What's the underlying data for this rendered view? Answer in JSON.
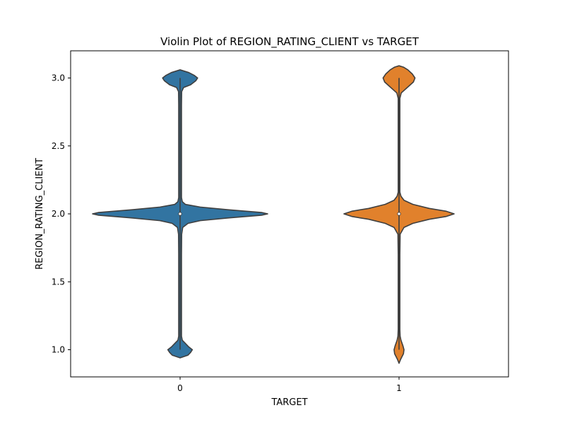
{
  "chart_data": {
    "type": "violin",
    "title": "Violin Plot of REGION_RATING_CLIENT vs TARGET",
    "xlabel": "TARGET",
    "ylabel": "REGION_RATING_CLIENT",
    "categories": [
      "0",
      "1"
    ],
    "ylim": [
      0.8,
      3.2
    ],
    "yticks": [
      1.0,
      1.5,
      2.0,
      2.5,
      3.0
    ],
    "ytick_labels": [
      "1.0",
      "1.5",
      "2.0",
      "2.5",
      "3.0"
    ],
    "grid": false,
    "colors": [
      "#3274a1",
      "#e1812c"
    ],
    "series": [
      {
        "category": "0",
        "median": 2.0,
        "q1": 2.0,
        "q3": 2.0,
        "whisker_low": 1.0,
        "whisker_high": 3.0,
        "density": [
          [
            0.94,
            0.0
          ],
          [
            0.96,
            0.09
          ],
          [
            0.98,
            0.12
          ],
          [
            1.0,
            0.14
          ],
          [
            1.02,
            0.1
          ],
          [
            1.04,
            0.07
          ],
          [
            1.07,
            0.025
          ],
          [
            1.1,
            0.016
          ],
          [
            1.2,
            0.016
          ],
          [
            1.7,
            0.016
          ],
          [
            1.85,
            0.018
          ],
          [
            1.9,
            0.03
          ],
          [
            1.93,
            0.09
          ],
          [
            1.95,
            0.23
          ],
          [
            1.97,
            0.55
          ],
          [
            1.99,
            0.93
          ],
          [
            2.0,
            1.0
          ],
          [
            2.01,
            0.93
          ],
          [
            2.03,
            0.55
          ],
          [
            2.05,
            0.23
          ],
          [
            2.07,
            0.06
          ],
          [
            2.09,
            0.025
          ],
          [
            2.12,
            0.016
          ],
          [
            2.8,
            0.016
          ],
          [
            2.9,
            0.018
          ],
          [
            2.93,
            0.04
          ],
          [
            2.95,
            0.12
          ],
          [
            2.98,
            0.18
          ],
          [
            3.0,
            0.2
          ],
          [
            3.02,
            0.16
          ],
          [
            3.04,
            0.1
          ],
          [
            3.06,
            0.0
          ]
        ]
      },
      {
        "category": "1",
        "median": 2.0,
        "q1": 2.0,
        "q3": 2.0,
        "whisker_low": 1.0,
        "whisker_high": 3.0,
        "density": [
          [
            0.9,
            0.0
          ],
          [
            0.93,
            0.03
          ],
          [
            0.97,
            0.08
          ],
          [
            1.0,
            0.09
          ],
          [
            1.03,
            0.07
          ],
          [
            1.07,
            0.035
          ],
          [
            1.1,
            0.02
          ],
          [
            1.15,
            0.015
          ],
          [
            1.7,
            0.015
          ],
          [
            1.85,
            0.02
          ],
          [
            1.9,
            0.09
          ],
          [
            1.93,
            0.25
          ],
          [
            1.96,
            0.55
          ],
          [
            1.98,
            0.85
          ],
          [
            2.0,
            1.0
          ],
          [
            2.02,
            0.85
          ],
          [
            2.04,
            0.55
          ],
          [
            2.07,
            0.25
          ],
          [
            2.1,
            0.09
          ],
          [
            2.13,
            0.035
          ],
          [
            2.16,
            0.015
          ],
          [
            2.85,
            0.015
          ],
          [
            2.89,
            0.04
          ],
          [
            2.93,
            0.15
          ],
          [
            2.97,
            0.26
          ],
          [
            3.0,
            0.29
          ],
          [
            3.03,
            0.24
          ],
          [
            3.06,
            0.16
          ],
          [
            3.08,
            0.08
          ],
          [
            3.09,
            0.0
          ]
        ]
      }
    ]
  }
}
